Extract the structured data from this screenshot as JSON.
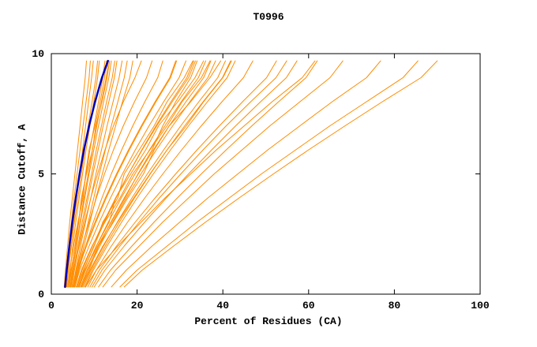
{
  "page": {
    "background": "#ffffff"
  },
  "chart_data": {
    "type": "line",
    "title": "T0996",
    "xlabel": "Percent of Residues (CA)",
    "ylabel": "Distance Cutoff, A",
    "xlim": [
      0,
      100
    ],
    "ylim": [
      0,
      10
    ],
    "x_ticks": [
      0,
      20,
      40,
      60,
      80,
      100
    ],
    "y_ticks": [
      0,
      5,
      10
    ],
    "grid": false,
    "legend": "none",
    "colors": {
      "model": "#ff8c00",
      "reference": "#0000bb",
      "axis": "#000000"
    },
    "y_grid": [
      0.3,
      1,
      2,
      3,
      4,
      5,
      6,
      7,
      8,
      9,
      9.7
    ],
    "series": [
      {
        "name": "model-01",
        "color": "model",
        "width": 1,
        "x": [
          3.0,
          3.3,
          3.8,
          4.3,
          4.9,
          5.5,
          6.1,
          6.7,
          7.3,
          7.9,
          8.2
        ]
      },
      {
        "name": "model-02",
        "color": "model",
        "width": 1,
        "x": [
          3.5,
          3.9,
          4.5,
          5.2,
          5.9,
          6.6,
          7.3,
          8.0,
          8.7,
          9.4,
          9.8
        ]
      },
      {
        "name": "model-03",
        "color": "model",
        "width": 1,
        "x": [
          4.0,
          4.4,
          5.0,
          5.7,
          6.5,
          7.3,
          8.1,
          9.0,
          9.9,
          10.8,
          11.2
        ]
      },
      {
        "name": "model-04",
        "color": "model",
        "width": 1,
        "x": [
          4.2,
          4.7,
          5.5,
          6.3,
          7.2,
          8.1,
          9.0,
          10.0,
          11.0,
          12.0,
          12.5
        ]
      },
      {
        "name": "model-05",
        "color": "model",
        "width": 1,
        "x": [
          4.5,
          5.0,
          5.9,
          6.8,
          7.8,
          8.8,
          9.9,
          11.0,
          12.2,
          13.4,
          14.0
        ]
      },
      {
        "name": "model-06",
        "color": "model",
        "width": 1,
        "x": [
          4.8,
          5.4,
          6.4,
          7.5,
          8.6,
          9.7,
          10.9,
          12.1,
          13.4,
          14.7,
          15.3
        ]
      },
      {
        "name": "model-07",
        "color": "model",
        "width": 1,
        "x": [
          5.0,
          5.7,
          6.8,
          8.0,
          9.2,
          10.4,
          11.7,
          13.0,
          14.4,
          15.8,
          16.5
        ]
      },
      {
        "name": "model-08",
        "color": "model",
        "width": 1,
        "x": [
          5.2,
          6.0,
          7.3,
          8.6,
          9.9,
          11.2,
          12.6,
          14.0,
          15.5,
          17.0,
          17.7
        ]
      },
      {
        "name": "model-09",
        "color": "model",
        "width": 1,
        "x": [
          4.0,
          4.6,
          5.6,
          6.4,
          7.0,
          8.2,
          9.6,
          10.4,
          11.8,
          13.0,
          13.6
        ]
      },
      {
        "name": "model-10",
        "color": "model",
        "width": 1,
        "x": [
          3.8,
          4.3,
          5.2,
          6.2,
          7.4,
          8.0,
          8.8,
          10.2,
          11.4,
          12.4,
          12.9
        ]
      },
      {
        "name": "model-11",
        "color": "model",
        "width": 1,
        "x": [
          4.5,
          5.2,
          6.5,
          7.8,
          9.2,
          10.8,
          12.5,
          14.5,
          16.8,
          19.5,
          21.0
        ]
      },
      {
        "name": "model-12",
        "color": "model",
        "width": 1,
        "x": [
          5.0,
          5.8,
          7.2,
          8.8,
          10.5,
          12.4,
          14.5,
          16.8,
          19.4,
          22.2,
          23.5
        ]
      },
      {
        "name": "model-13",
        "color": "model",
        "width": 1,
        "x": [
          5.5,
          6.4,
          8.0,
          9.8,
          11.8,
          14.0,
          16.4,
          19.0,
          21.8,
          24.8,
          26.0
        ]
      },
      {
        "name": "model-14",
        "color": "model",
        "width": 1,
        "x": [
          5.0,
          6.0,
          8.0,
          10.2,
          12.6,
          15.2,
          18.0,
          21.0,
          24.2,
          27.6,
          29.0
        ]
      },
      {
        "name": "model-15",
        "color": "model",
        "width": 1,
        "x": [
          5.5,
          6.6,
          8.8,
          11.2,
          13.8,
          16.6,
          19.6,
          22.8,
          26.2,
          29.8,
          31.4
        ]
      },
      {
        "name": "model-16",
        "color": "model",
        "width": 1,
        "x": [
          6.0,
          7.2,
          9.6,
          12.2,
          15.0,
          18.0,
          21.2,
          24.6,
          28.2,
          32.0,
          33.6
        ]
      },
      {
        "name": "model-17",
        "color": "model",
        "width": 1,
        "x": [
          6.5,
          7.9,
          10.5,
          13.3,
          16.3,
          19.5,
          22.9,
          26.5,
          30.3,
          34.3,
          36.0
        ]
      },
      {
        "name": "model-18",
        "color": "model",
        "width": 1,
        "x": [
          7.0,
          8.5,
          11.3,
          14.3,
          17.5,
          20.9,
          24.5,
          28.3,
          32.3,
          36.5,
          38.3
        ]
      },
      {
        "name": "model-19",
        "color": "model",
        "width": 1,
        "x": [
          7.5,
          9.2,
          12.2,
          15.4,
          18.8,
          22.4,
          26.2,
          30.2,
          34.4,
          38.8,
          40.6
        ]
      },
      {
        "name": "model-20",
        "color": "model",
        "width": 1,
        "x": [
          8.0,
          9.8,
          13.0,
          16.4,
          20.0,
          23.8,
          27.8,
          32.0,
          36.4,
          41.0,
          42.9
        ]
      },
      {
        "name": "model-21",
        "color": "model",
        "width": 1,
        "x": [
          6.0,
          7.5,
          10.0,
          12.0,
          15.5,
          17.0,
          20.5,
          24.0,
          27.0,
          31.0,
          33.0
        ]
      },
      {
        "name": "model-22",
        "color": "model",
        "width": 1,
        "x": [
          6.5,
          8.0,
          10.5,
          13.5,
          15.0,
          18.5,
          22.0,
          25.0,
          29.5,
          33.5,
          35.5
        ]
      },
      {
        "name": "model-23",
        "color": "model",
        "width": 1,
        "x": [
          7.0,
          8.8,
          11.0,
          14.5,
          17.8,
          21.5,
          24.0,
          27.5,
          32.5,
          37.0,
          39.5
        ]
      },
      {
        "name": "model-24",
        "color": "model",
        "width": 1,
        "x": [
          5.8,
          7.0,
          9.5,
          12.5,
          16.0,
          19.0,
          23.0,
          27.0,
          30.5,
          35.0,
          37.0
        ]
      },
      {
        "name": "model-25",
        "color": "model",
        "width": 1,
        "x": [
          6.2,
          7.8,
          10.8,
          14.0,
          17.2,
          20.2,
          23.5,
          26.0,
          29.0,
          32.5,
          34.0
        ]
      },
      {
        "name": "model-26",
        "color": "model",
        "width": 1,
        "x": [
          7.2,
          9.0,
          12.0,
          15.5,
          19.2,
          23.0,
          27.0,
          31.5,
          35.5,
          40.0,
          42.0
        ]
      },
      {
        "name": "model-27",
        "color": "model",
        "width": 1,
        "x": [
          8.5,
          10.5,
          14.0,
          17.8,
          21.8,
          26.0,
          30.4,
          35.0,
          39.8,
          44.8,
          47.0
        ]
      },
      {
        "name": "model-28",
        "color": "model",
        "width": 1,
        "x": [
          9.0,
          11.2,
          15.2,
          19.6,
          24.2,
          29.0,
          34.0,
          39.2,
          44.6,
          50.2,
          52.5
        ]
      },
      {
        "name": "model-29",
        "color": "model",
        "width": 1,
        "x": [
          10.0,
          12.5,
          17.0,
          21.8,
          26.8,
          32.0,
          37.4,
          43.0,
          48.8,
          54.8,
          57.3
        ]
      },
      {
        "name": "model-30",
        "color": "model",
        "width": 1,
        "x": [
          11.0,
          13.8,
          18.8,
          24.0,
          29.4,
          35.0,
          40.8,
          46.8,
          53.0,
          59.4,
          62.0
        ]
      },
      {
        "name": "model-31",
        "color": "model",
        "width": 1,
        "x": [
          8.0,
          10.5,
          15.5,
          21.0,
          26.5,
          32.5,
          38.5,
          45.0,
          51.5,
          58.5,
          61.5
        ]
      },
      {
        "name": "model-32",
        "color": "model",
        "width": 1,
        "x": [
          12.0,
          15.0,
          20.5,
          26.0,
          32.0,
          38.0,
          44.5,
          51.0,
          58.0,
          65.0,
          68.0
        ]
      },
      {
        "name": "model-33",
        "color": "model",
        "width": 1,
        "x": [
          14.0,
          17.5,
          23.5,
          30.0,
          36.5,
          43.5,
          50.5,
          58.0,
          65.5,
          73.5,
          76.8
        ]
      },
      {
        "name": "model-34",
        "color": "model",
        "width": 1,
        "x": [
          16.0,
          20.0,
          27.0,
          34.0,
          41.5,
          49.0,
          57.0,
          65.0,
          73.5,
          82.0,
          85.5
        ]
      },
      {
        "name": "model-35",
        "color": "model",
        "width": 1,
        "x": [
          17.0,
          21.2,
          28.5,
          36.0,
          43.8,
          51.8,
          60.0,
          68.5,
          77.2,
          86.2,
          90.0
        ]
      },
      {
        "name": "model-36",
        "color": "model",
        "width": 1,
        "x": [
          3.2,
          3.5,
          4.1,
          4.7,
          5.3,
          6.0,
          6.7,
          7.4,
          8.1,
          8.8,
          9.1
        ]
      },
      {
        "name": "model-37",
        "color": "model",
        "width": 1,
        "x": [
          3.6,
          4.0,
          4.7,
          5.4,
          6.2,
          7.0,
          7.8,
          8.6,
          9.5,
          10.4,
          10.8
        ]
      },
      {
        "name": "model-38",
        "color": "model",
        "width": 1,
        "x": [
          4.4,
          4.9,
          5.8,
          6.7,
          7.6,
          8.6,
          9.6,
          10.6,
          11.7,
          12.8,
          13.3
        ]
      },
      {
        "name": "model-39",
        "color": "model",
        "width": 1,
        "x": [
          4.6,
          5.2,
          6.2,
          7.2,
          8.3,
          9.4,
          10.5,
          11.7,
          12.9,
          14.2,
          14.8
        ]
      },
      {
        "name": "model-40",
        "color": "model",
        "width": 1,
        "x": [
          5.4,
          6.2,
          7.6,
          9.0,
          10.4,
          11.9,
          13.4,
          15.0,
          16.6,
          18.3,
          19.0
        ]
      },
      {
        "name": "model-41",
        "color": "model",
        "width": 1,
        "x": [
          6.8,
          8.3,
          11.0,
          13.9,
          17.0,
          20.3,
          23.8,
          27.5,
          31.4,
          35.5,
          37.2
        ]
      },
      {
        "name": "model-42",
        "color": "model",
        "width": 1,
        "x": [
          7.8,
          9.5,
          12.6,
          15.9,
          19.4,
          23.1,
          27.0,
          31.1,
          35.4,
          39.9,
          41.8
        ]
      },
      {
        "name": "model-43",
        "color": "model",
        "width": 1,
        "x": [
          9.5,
          11.8,
          16.0,
          20.5,
          25.2,
          30.2,
          35.4,
          40.8,
          46.5,
          52.4,
          54.9
        ]
      },
      {
        "name": "model-44",
        "color": "model",
        "width": 1,
        "x": [
          6.4,
          7.6,
          9.9,
          12.4,
          15.1,
          18.0,
          21.1,
          24.4,
          27.9,
          31.6,
          33.2
        ]
      },
      {
        "name": "model-45",
        "color": "model",
        "width": 1,
        "x": [
          5.2,
          6.2,
          8.2,
          10.4,
          12.8,
          15.4,
          18.2,
          21.2,
          24.4,
          27.8,
          29.2
        ]
      },
      {
        "name": "reference",
        "color": "reference",
        "width": 2.5,
        "x": [
          3.2,
          3.6,
          4.2,
          4.9,
          5.7,
          6.6,
          7.6,
          8.8,
          10.2,
          11.8,
          13.2
        ]
      }
    ]
  }
}
